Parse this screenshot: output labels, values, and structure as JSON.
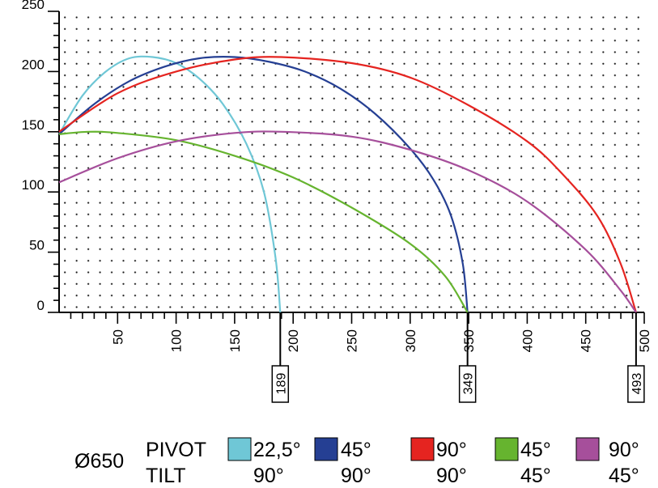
{
  "chart_data": {
    "type": "line",
    "title": "",
    "xlabel": "",
    "ylabel": "",
    "xlim": [
      0,
      500
    ],
    "ylim": [
      0,
      250
    ],
    "grid": true,
    "x_ticks": [
      50,
      100,
      150,
      200,
      250,
      300,
      350,
      400,
      450,
      500
    ],
    "y_ticks": [
      0,
      50,
      100,
      150,
      200,
      250
    ],
    "x_tick_labels": [
      "50",
      "100",
      "150",
      "200",
      "250",
      "300",
      "350",
      "400",
      "450",
      "500"
    ],
    "y_tick_labels": [
      "0",
      "50",
      "100",
      "150",
      "200",
      "250"
    ],
    "end_markers": [
      {
        "x": 189,
        "label": "189"
      },
      {
        "x": 349,
        "label": "349"
      },
      {
        "x": 493,
        "label": "493"
      }
    ],
    "series": [
      {
        "color": "#6fc7d6",
        "points": [
          [
            0,
            148
          ],
          [
            20,
            180
          ],
          [
            40,
            200
          ],
          [
            60,
            211
          ],
          [
            80,
            212
          ],
          [
            100,
            207
          ],
          [
            120,
            194
          ],
          [
            140,
            173
          ],
          [
            160,
            140
          ],
          [
            175,
            100
          ],
          [
            185,
            45
          ],
          [
            189,
            0
          ]
        ]
      },
      {
        "color": "#253f93",
        "points": [
          [
            0,
            148
          ],
          [
            30,
            173
          ],
          [
            60,
            192
          ],
          [
            90,
            204
          ],
          [
            120,
            211
          ],
          [
            150,
            212
          ],
          [
            180,
            208
          ],
          [
            210,
            200
          ],
          [
            240,
            186
          ],
          [
            270,
            165
          ],
          [
            300,
            136
          ],
          [
            320,
            110
          ],
          [
            335,
            80
          ],
          [
            345,
            40
          ],
          [
            349,
            0
          ]
        ]
      },
      {
        "color": "#e52420",
        "points": [
          [
            0,
            150
          ],
          [
            50,
            182
          ],
          [
            100,
            200
          ],
          [
            150,
            210
          ],
          [
            190,
            212
          ],
          [
            250,
            207
          ],
          [
            300,
            195
          ],
          [
            350,
            172
          ],
          [
            400,
            142
          ],
          [
            430,
            115
          ],
          [
            460,
            80
          ],
          [
            480,
            40
          ],
          [
            493,
            0
          ]
        ]
      },
      {
        "color": "#66b42f",
        "points": [
          [
            0,
            148
          ],
          [
            25,
            150
          ],
          [
            50,
            149
          ],
          [
            100,
            143
          ],
          [
            150,
            130
          ],
          [
            200,
            112
          ],
          [
            250,
            87
          ],
          [
            300,
            57
          ],
          [
            330,
            30
          ],
          [
            349,
            0
          ]
        ]
      },
      {
        "color": "#a64f9b",
        "points": [
          [
            0,
            108
          ],
          [
            50,
            128
          ],
          [
            100,
            142
          ],
          [
            150,
            149
          ],
          [
            190,
            150
          ],
          [
            250,
            146
          ],
          [
            300,
            135
          ],
          [
            350,
            118
          ],
          [
            400,
            92
          ],
          [
            450,
            52
          ],
          [
            480,
            18
          ],
          [
            493,
            0
          ]
        ]
      }
    ],
    "legend": {
      "placement": "bottom",
      "prefix": "Ø650",
      "row_labels": [
        "PIVOT",
        "TILT"
      ],
      "entries": [
        {
          "color": "#6fc7d6",
          "pivot": "22,5°",
          "tilt": "90°"
        },
        {
          "color": "#253f93",
          "pivot": "45°",
          "tilt": "90°"
        },
        {
          "color": "#e52420",
          "pivot": "90°",
          "tilt": "90°"
        },
        {
          "color": "#66b42f",
          "pivot": "45°",
          "tilt": "45°"
        },
        {
          "color": "#a64f9b",
          "pivot": "90°",
          "tilt": "45°"
        }
      ]
    }
  }
}
